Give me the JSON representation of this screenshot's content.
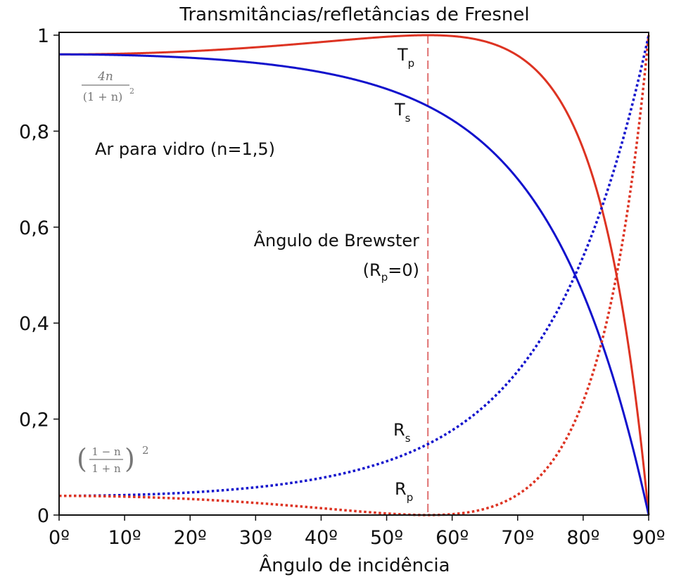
{
  "chart_data": {
    "type": "line",
    "title": "Transmitâncias/refletâncias de Fresnel",
    "xlabel": "Ângulo de incidência",
    "ylabel": "",
    "xlim": [
      0,
      90
    ],
    "ylim": [
      0,
      1
    ],
    "x_ticks": [
      "0º",
      "10º",
      "20º",
      "30º",
      "40º",
      "50º",
      "60º",
      "70º",
      "80º",
      "90º"
    ],
    "y_ticks": [
      "0",
      "0,2",
      "0,4",
      "0,6",
      "0,8",
      "1"
    ],
    "grid": false,
    "refractive_index": 1.5,
    "brewster_angle": 56.3,
    "x": [
      0,
      10,
      20,
      30,
      40,
      50,
      56.3,
      60,
      70,
      80,
      85,
      90
    ],
    "series": [
      {
        "name": "Tp",
        "label": "T",
        "sub": "p",
        "color": "#dd3322",
        "style": "solid",
        "values": [
          0.96,
          0.961,
          0.966,
          0.975,
          0.987,
          0.998,
          1.0,
          0.999,
          0.966,
          0.818,
          0.61,
          0.0
        ]
      },
      {
        "name": "Ts",
        "label": "T",
        "sub": "s",
        "color": "#1111cc",
        "style": "solid",
        "values": [
          0.96,
          0.959,
          0.947,
          0.942,
          0.908,
          0.875,
          0.85,
          0.82,
          0.714,
          0.491,
          0.31,
          0.0
        ]
      },
      {
        "name": "Rs",
        "label": "R",
        "sub": "s",
        "color": "#1111cc",
        "style": "dotted",
        "values": [
          0.04,
          0.041,
          0.053,
          0.058,
          0.092,
          0.125,
          0.15,
          0.18,
          0.286,
          0.509,
          0.69,
          1.0
        ]
      },
      {
        "name": "Rp",
        "label": "R",
        "sub": "p",
        "color": "#dd3322",
        "style": "dotted",
        "values": [
          0.04,
          0.039,
          0.034,
          0.025,
          0.013,
          0.002,
          0.0,
          0.001,
          0.034,
          0.182,
          0.39,
          1.0
        ]
      }
    ],
    "annotations": {
      "medium": "Ar para vidro (n=1,5)",
      "brewster_line1": "Ângulo de Brewster",
      "brewster_line2_prefix": "(R",
      "brewster_line2_sub": "p",
      "brewster_line2_suffix": "=0)",
      "t0_formula_num": "4n",
      "t0_formula_den": "(1 + n)",
      "t0_formula_exp": "2",
      "r0_formula_num": "1 − n",
      "r0_formula_den": "1 + n",
      "r0_formula_exp": "2"
    },
    "colors": {
      "p": "#dd3322",
      "s": "#1111cc",
      "brewster_line": "#e07070"
    }
  }
}
